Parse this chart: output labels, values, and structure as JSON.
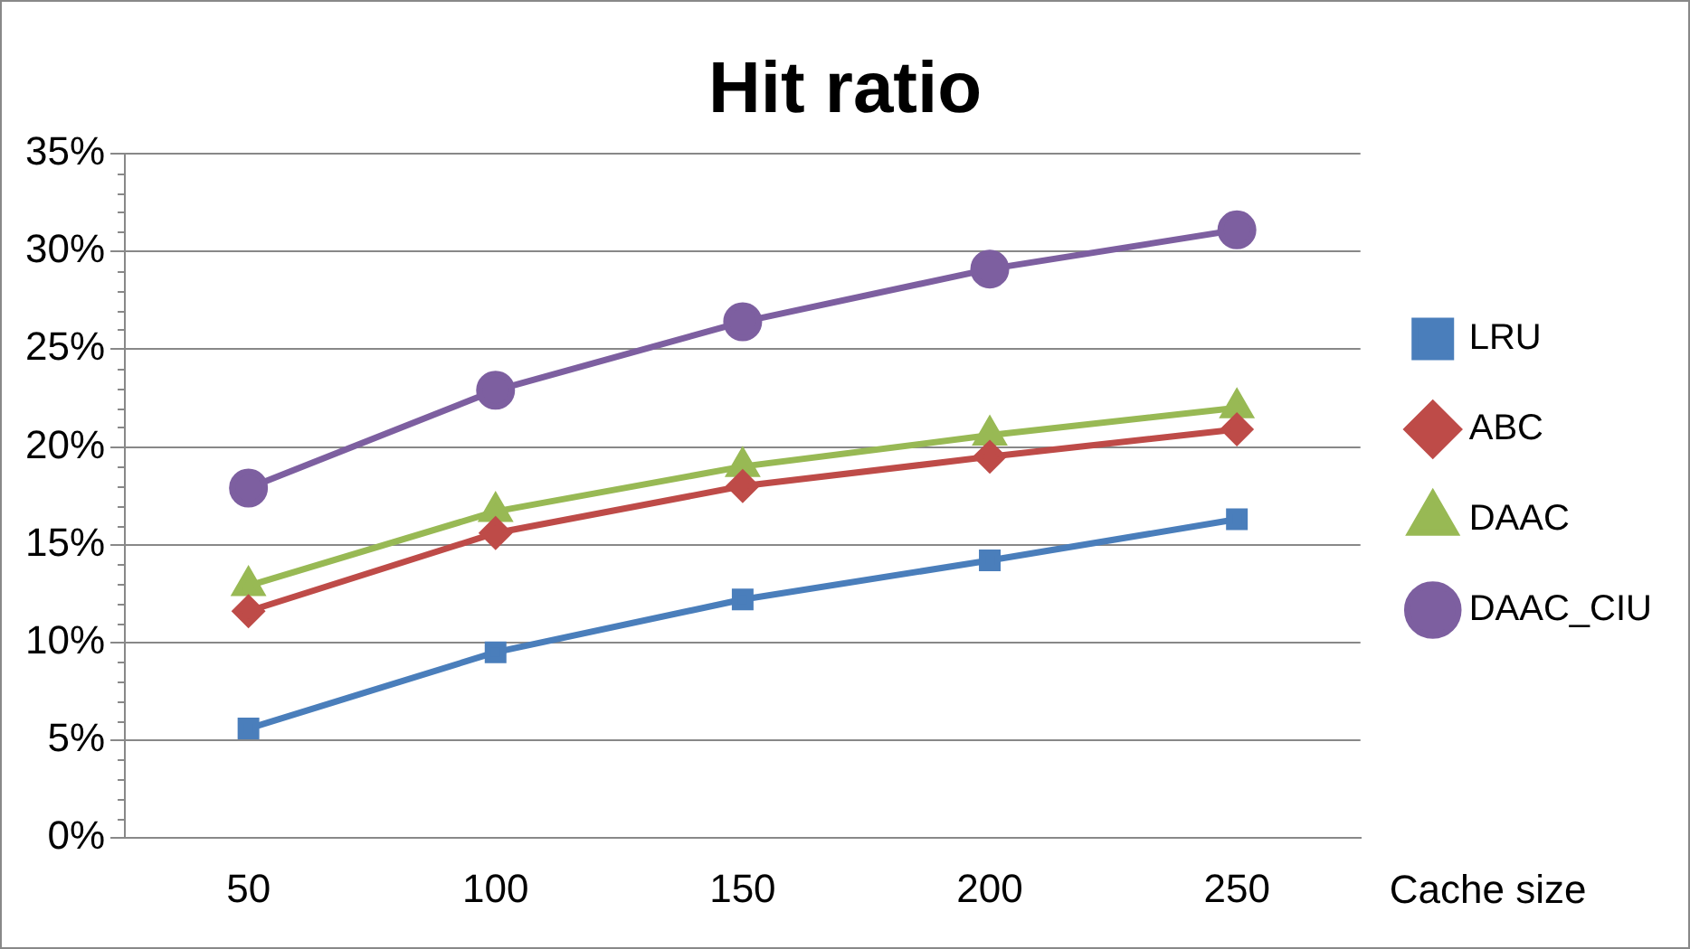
{
  "chart_data": {
    "type": "line",
    "title": "Hit ratio",
    "xlabel": "Cache size",
    "categories": [
      "50",
      "100",
      "150",
      "200",
      "250"
    ],
    "series": [
      {
        "name": "LRU",
        "color": "#4a7ebb",
        "marker": "square",
        "values": [
          5.6,
          9.5,
          12.2,
          14.2,
          16.3
        ]
      },
      {
        "name": "ABC",
        "color": "#be4b48",
        "marker": "diamond",
        "values": [
          11.6,
          15.6,
          18.0,
          19.5,
          20.9
        ]
      },
      {
        "name": "DAAC",
        "color": "#98b954",
        "marker": "triangle",
        "values": [
          12.9,
          16.7,
          19.0,
          20.6,
          22.0
        ]
      },
      {
        "name": "DAAC_CIU",
        "color": "#7d5fa0",
        "marker": "circle",
        "values": [
          17.9,
          22.9,
          26.4,
          29.1,
          31.1
        ]
      }
    ],
    "ylim": [
      0,
      35
    ],
    "yticks": [
      {
        "value": 0,
        "label": "0%"
      },
      {
        "value": 5,
        "label": "5%"
      },
      {
        "value": 10,
        "label": "10%"
      },
      {
        "value": 15,
        "label": "15%"
      },
      {
        "value": 20,
        "label": "20%"
      },
      {
        "value": 25,
        "label": "25%"
      },
      {
        "value": 30,
        "label": "30%"
      },
      {
        "value": 35,
        "label": "35%"
      }
    ],
    "grid": "y",
    "legend": "right",
    "line_style": "solid"
  }
}
